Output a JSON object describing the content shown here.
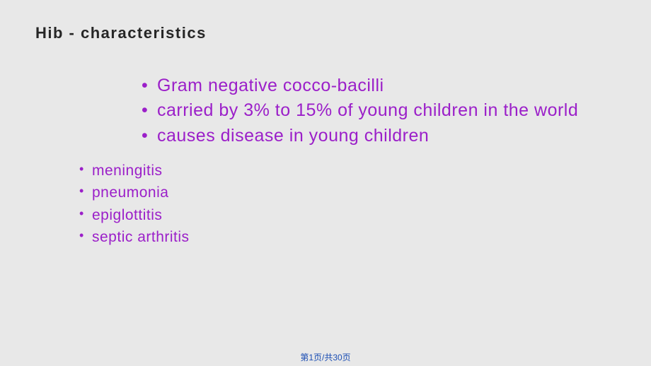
{
  "slide": {
    "title": "Hib - characteristics",
    "title_color": "#262626",
    "title_fontsize": 22,
    "title_fontweight": 700,
    "title_letterspacing": 1.5,
    "background_color": "#e8e8e8",
    "bullet_color": "#9b1fc9",
    "main_bullets": [
      "Gram negative cocco-bacilli",
      "carried by 3% to 15% of young children in the world",
      "causes disease in young children"
    ],
    "main_fontsize": 25,
    "sub_bullets": [
      "meningitis",
      "pneumonia",
      "epiglottitis",
      "septic arthritis"
    ],
    "sub_fontsize": 21,
    "footer_text": "第1页/共30页",
    "footer_color": "#1a4db3",
    "footer_fontsize": 12
  }
}
